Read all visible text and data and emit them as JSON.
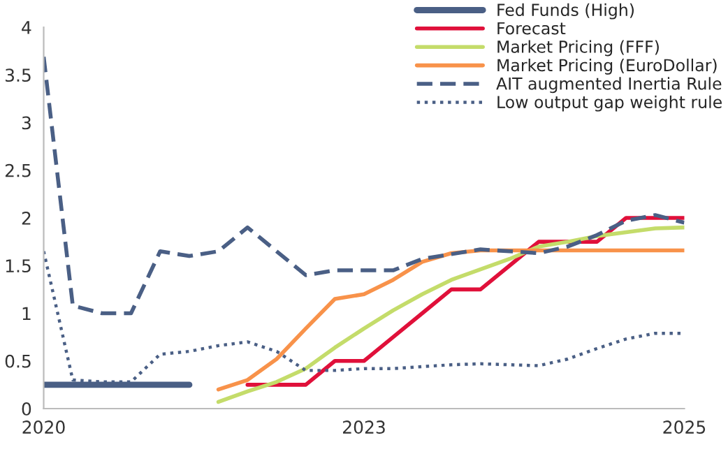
{
  "chart_data": {
    "type": "line",
    "categories": [
      "2020",
      null,
      null,
      null,
      null,
      null,
      null,
      null,
      null,
      null,
      null,
      "2023",
      null,
      null,
      null,
      null,
      null,
      null,
      null,
      null,
      null,
      null,
      "2025"
    ],
    "ylim": [
      0,
      4
    ],
    "yticks": [
      0,
      0.5,
      1,
      1.5,
      2,
      2.5,
      3,
      3.5,
      4
    ],
    "grid": false,
    "legend": "top right",
    "series": [
      {
        "name": "Fed Funds (High)",
        "color": "#4a5f85",
        "line_style": "solid",
        "values": [
          0.25,
          0.25,
          0.25,
          0.25,
          0.25,
          0.25,
          null,
          null,
          null,
          null,
          null,
          null,
          null,
          null,
          null,
          null,
          null,
          null,
          null,
          null,
          null,
          null,
          null
        ]
      },
      {
        "name": "Forecast",
        "color": "#e0103a",
        "line_style": "solid",
        "values": [
          null,
          null,
          null,
          null,
          null,
          null,
          null,
          0.25,
          0.25,
          0.25,
          0.5,
          0.5,
          0.75,
          1.0,
          1.25,
          1.25,
          1.5,
          1.75,
          1.75,
          1.75,
          2.0,
          2.0,
          2.0
        ]
      },
      {
        "name": "Market Pricing (FFF)",
        "color": "#c4dc6a",
        "line_style": "solid",
        "values": [
          null,
          null,
          null,
          null,
          null,
          null,
          0.07,
          0.18,
          0.28,
          0.42,
          0.64,
          0.84,
          1.03,
          1.2,
          1.35,
          1.46,
          1.57,
          1.7,
          1.75,
          1.81,
          1.85,
          1.89,
          1.9
        ]
      },
      {
        "name": "Market Pricing (EuroDollar)",
        "color": "#f8924a",
        "line_style": "solid",
        "values": [
          null,
          null,
          null,
          null,
          null,
          null,
          0.2,
          0.3,
          0.52,
          0.84,
          1.15,
          1.2,
          1.35,
          1.54,
          1.63,
          1.66,
          1.66,
          1.66,
          1.66,
          1.66,
          1.66,
          1.66,
          1.66
        ]
      },
      {
        "name": "AIT augmented Inertia Rule",
        "color": "#4a5f85",
        "line_style": "dashed",
        "values": [
          3.69,
          1.08,
          1.0,
          1.0,
          1.65,
          1.6,
          1.65,
          1.9,
          1.65,
          1.4,
          1.45,
          1.45,
          1.45,
          1.57,
          1.62,
          1.67,
          1.65,
          1.63,
          1.7,
          1.82,
          1.97,
          2.03,
          1.95
        ]
      },
      {
        "name": "Low output gap weight rule",
        "color": "#4a5f85",
        "line_style": "dotted",
        "values": [
          1.65,
          0.3,
          0.28,
          0.28,
          0.57,
          0.6,
          0.66,
          0.7,
          0.6,
          0.4,
          0.4,
          0.42,
          0.42,
          0.44,
          0.46,
          0.47,
          0.46,
          0.45,
          0.52,
          0.63,
          0.73,
          0.79,
          0.79
        ]
      }
    ]
  }
}
